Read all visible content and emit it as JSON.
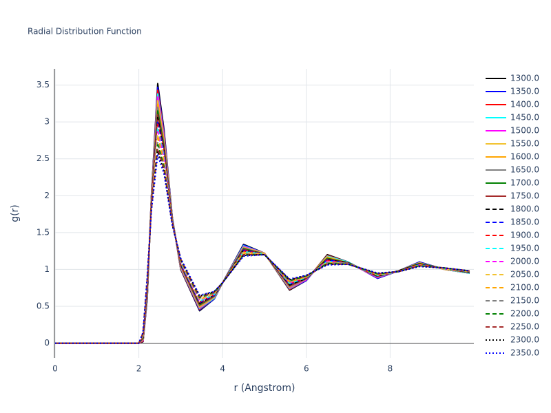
{
  "chart_data": {
    "type": "line",
    "title": "Radial Distribution Function",
    "x_label": "r (Angstrom)",
    "y_label": "g(r)",
    "x": [
      0,
      1,
      2,
      2.1,
      2.2,
      2.3,
      2.45,
      2.6,
      2.8,
      3.0,
      3.45,
      3.8,
      4.0,
      4.5,
      5.0,
      5.6,
      6.0,
      6.5,
      7.0,
      7.7,
      8.2,
      8.7,
      9.3,
      9.9
    ],
    "xlim": [
      0,
      10
    ],
    "xticks": [
      0,
      2,
      4,
      6,
      8
    ],
    "ylim": [
      -0.2,
      3.72
    ],
    "yticks": [
      0,
      0.5,
      1,
      1.5,
      2,
      2.5,
      3,
      3.5
    ],
    "grid": true,
    "legend": "right",
    "series": [
      {
        "name": "1300.0",
        "color": "#000000",
        "dash": "solid",
        "values": [
          0,
          0,
          0,
          0.02,
          0.6,
          2.0,
          3.52,
          2.9,
          1.7,
          1.0,
          0.44,
          0.6,
          0.82,
          1.34,
          1.22,
          0.72,
          0.85,
          1.2,
          1.1,
          0.88,
          0.98,
          1.1,
          1.0,
          0.95
        ]
      },
      {
        "name": "1350.0",
        "color": "#0000ff",
        "dash": "solid",
        "values": [
          0,
          0,
          0,
          0.03,
          0.61,
          1.99,
          3.47,
          2.87,
          1.7,
          1.01,
          0.45,
          0.6,
          0.82,
          1.33,
          1.22,
          0.73,
          0.85,
          1.19,
          1.1,
          0.88,
          0.98,
          1.1,
          1.0,
          0.95
        ]
      },
      {
        "name": "1400.0",
        "color": "#ff0000",
        "dash": "solid",
        "values": [
          0,
          0,
          0,
          0.03,
          0.63,
          1.98,
          3.43,
          2.84,
          1.69,
          1.01,
          0.46,
          0.61,
          0.82,
          1.32,
          1.22,
          0.73,
          0.86,
          1.19,
          1.1,
          0.89,
          0.98,
          1.09,
          1.0,
          0.95
        ]
      },
      {
        "name": "1450.0",
        "color": "#00ffff",
        "dash": "solid",
        "values": [
          0,
          0,
          0,
          0.04,
          0.64,
          1.97,
          3.38,
          2.81,
          1.69,
          1.02,
          0.47,
          0.61,
          0.82,
          1.32,
          1.22,
          0.74,
          0.86,
          1.18,
          1.1,
          0.89,
          0.98,
          1.09,
          1.0,
          0.95
        ]
      },
      {
        "name": "1500.0",
        "color": "#ff00ff",
        "dash": "solid",
        "values": [
          0,
          0,
          0,
          0.04,
          0.66,
          1.96,
          3.34,
          2.79,
          1.68,
          1.03,
          0.48,
          0.62,
          0.82,
          1.31,
          1.22,
          0.75,
          0.86,
          1.17,
          1.09,
          0.89,
          0.98,
          1.09,
          1.0,
          0.96
        ]
      },
      {
        "name": "1550.0",
        "color": "#f2c230",
        "dash": "solid",
        "values": [
          0,
          0,
          0,
          0.05,
          0.67,
          1.95,
          3.29,
          2.76,
          1.68,
          1.04,
          0.49,
          0.62,
          0.82,
          1.3,
          1.22,
          0.76,
          0.87,
          1.17,
          1.09,
          0.9,
          0.98,
          1.09,
          1.0,
          0.96
        ]
      },
      {
        "name": "1600.0",
        "color": "#ffa500",
        "dash": "solid",
        "values": [
          0,
          0,
          0,
          0.06,
          0.69,
          1.94,
          3.24,
          2.73,
          1.67,
          1.04,
          0.5,
          0.63,
          0.82,
          1.29,
          1.21,
          0.76,
          0.87,
          1.16,
          1.09,
          0.9,
          0.98,
          1.08,
          1.01,
          0.96
        ]
      },
      {
        "name": "1650.0",
        "color": "#808080",
        "dash": "solid",
        "values": [
          0,
          0,
          0,
          0.06,
          0.7,
          1.93,
          3.2,
          2.7,
          1.67,
          1.05,
          0.51,
          0.63,
          0.82,
          1.29,
          1.21,
          0.77,
          0.87,
          1.15,
          1.09,
          0.9,
          0.98,
          1.08,
          1.01,
          0.96
        ]
      },
      {
        "name": "1700.0",
        "color": "#008000",
        "dash": "solid",
        "values": [
          0,
          0,
          0,
          0.07,
          0.71,
          1.92,
          3.15,
          2.67,
          1.66,
          1.06,
          0.52,
          0.64,
          0.82,
          1.28,
          1.21,
          0.78,
          0.88,
          1.15,
          1.09,
          0.91,
          0.98,
          1.08,
          1.01,
          0.96
        ]
      },
      {
        "name": "1750.0",
        "color": "#a52a2a",
        "dash": "solid",
        "values": [
          0,
          0,
          0,
          0.08,
          0.73,
          1.91,
          3.1,
          2.64,
          1.66,
          1.06,
          0.53,
          0.64,
          0.82,
          1.27,
          1.21,
          0.78,
          0.88,
          1.14,
          1.09,
          0.91,
          0.98,
          1.07,
          1.01,
          0.96
        ]
      },
      {
        "name": "1800.0",
        "color": "#000000",
        "dash": "dash",
        "values": [
          0,
          0,
          0,
          0.08,
          0.74,
          1.9,
          3.06,
          2.61,
          1.65,
          1.07,
          0.54,
          0.65,
          0.82,
          1.26,
          1.21,
          0.79,
          0.88,
          1.13,
          1.09,
          0.91,
          0.98,
          1.07,
          1.01,
          0.96
        ]
      },
      {
        "name": "1850.0",
        "color": "#0000ff",
        "dash": "dash",
        "values": [
          0,
          0,
          0,
          0.09,
          0.76,
          1.9,
          3.01,
          2.59,
          1.65,
          1.08,
          0.55,
          0.65,
          0.82,
          1.26,
          1.21,
          0.8,
          0.89,
          1.13,
          1.08,
          0.92,
          0.97,
          1.07,
          1.01,
          0.97
        ]
      },
      {
        "name": "1900.0",
        "color": "#ff0000",
        "dash": "dash",
        "values": [
          0,
          0,
          0,
          0.09,
          0.77,
          1.89,
          2.97,
          2.56,
          1.64,
          1.09,
          0.56,
          0.66,
          0.82,
          1.25,
          1.21,
          0.81,
          0.89,
          1.12,
          1.08,
          0.92,
          0.97,
          1.07,
          1.01,
          0.97
        ]
      },
      {
        "name": "1950.0",
        "color": "#00ffff",
        "dash": "dash",
        "values": [
          0,
          0,
          0,
          0.1,
          0.79,
          1.88,
          2.92,
          2.53,
          1.64,
          1.09,
          0.57,
          0.66,
          0.82,
          1.24,
          1.21,
          0.81,
          0.89,
          1.11,
          1.08,
          0.92,
          0.97,
          1.06,
          1.01,
          0.97
        ]
      },
      {
        "name": "2000.0",
        "color": "#ff00ff",
        "dash": "dash",
        "values": [
          0,
          0,
          0,
          0.11,
          0.8,
          1.87,
          2.87,
          2.5,
          1.63,
          1.1,
          0.58,
          0.67,
          0.82,
          1.23,
          1.21,
          0.82,
          0.9,
          1.11,
          1.08,
          0.93,
          0.97,
          1.06,
          1.01,
          0.97
        ]
      },
      {
        "name": "2050.0",
        "color": "#f2c230",
        "dash": "dash",
        "values": [
          0,
          0,
          0,
          0.11,
          0.81,
          1.86,
          2.83,
          2.47,
          1.63,
          1.11,
          0.59,
          0.67,
          0.82,
          1.23,
          1.21,
          0.83,
          0.9,
          1.1,
          1.08,
          0.93,
          0.97,
          1.06,
          1.01,
          0.97
        ]
      },
      {
        "name": "2100.0",
        "color": "#ffa500",
        "dash": "dash",
        "values": [
          0,
          0,
          0,
          0.12,
          0.83,
          1.85,
          2.78,
          2.44,
          1.62,
          1.11,
          0.6,
          0.68,
          0.82,
          1.22,
          1.2,
          0.83,
          0.9,
          1.09,
          1.08,
          0.93,
          0.97,
          1.05,
          1.02,
          0.97
        ]
      },
      {
        "name": "2150.0",
        "color": "#808080",
        "dash": "dash",
        "values": [
          0,
          0,
          0,
          0.13,
          0.84,
          1.84,
          2.73,
          2.41,
          1.62,
          1.12,
          0.61,
          0.68,
          0.82,
          1.21,
          1.2,
          0.84,
          0.91,
          1.09,
          1.08,
          0.94,
          0.97,
          1.05,
          1.02,
          0.97
        ]
      },
      {
        "name": "2200.0",
        "color": "#008000",
        "dash": "dash",
        "values": [
          0,
          0,
          0,
          0.13,
          0.86,
          1.83,
          2.69,
          2.39,
          1.61,
          1.13,
          0.62,
          0.69,
          0.82,
          1.2,
          1.2,
          0.85,
          0.91,
          1.08,
          1.07,
          0.94,
          0.97,
          1.05,
          1.02,
          0.98
        ]
      },
      {
        "name": "2250.0",
        "color": "#a52a2a",
        "dash": "dash",
        "values": [
          0,
          0,
          0,
          0.14,
          0.87,
          1.82,
          2.64,
          2.36,
          1.61,
          1.14,
          0.63,
          0.69,
          0.82,
          1.2,
          1.2,
          0.86,
          0.91,
          1.07,
          1.07,
          0.94,
          0.97,
          1.05,
          1.02,
          0.98
        ]
      },
      {
        "name": "2300.0",
        "color": "#000000",
        "dash": "dot",
        "values": [
          0,
          0,
          0,
          0.14,
          0.89,
          1.81,
          2.6,
          2.33,
          1.6,
          1.14,
          0.64,
          0.7,
          0.82,
          1.19,
          1.2,
          0.86,
          0.92,
          1.07,
          1.07,
          0.95,
          0.97,
          1.04,
          1.02,
          0.98
        ]
      },
      {
        "name": "2350.0",
        "color": "#0000ff",
        "dash": "dot",
        "values": [
          0,
          0,
          0,
          0.15,
          0.9,
          1.8,
          2.55,
          2.3,
          1.6,
          1.15,
          0.65,
          0.7,
          0.82,
          1.18,
          1.2,
          0.87,
          0.92,
          1.06,
          1.07,
          0.95,
          0.97,
          1.04,
          1.02,
          0.98
        ]
      }
    ]
  }
}
